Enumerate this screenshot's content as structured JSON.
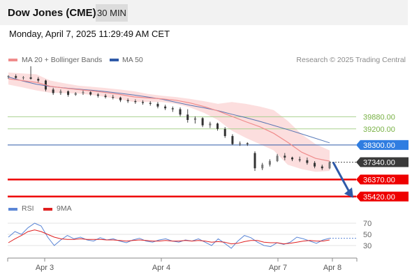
{
  "header": {
    "title": "Dow Jones (CME)",
    "timeframe": "30 MIN"
  },
  "timestamp": "Monday, April 7, 2025 11:29:49 AM CET",
  "legend": {
    "bb_label": "MA 20 + Bollinger Bands",
    "ma50_label": "MA 50",
    "credit": "Research © 2025 Trading Central"
  },
  "rsi_legend": {
    "rsi_label": "RSI",
    "ma_label": "9MA"
  },
  "colors": {
    "bb": "#f08c8c",
    "bb_fill": "#fbd8d8",
    "ma50": "#2f5aa8",
    "green": "#a9d18e",
    "red": "#ee0000",
    "candle": "#444444",
    "rsi": "#5b86d6",
    "rsi_ma": "#e02020",
    "arrow": "#2f5aa8"
  },
  "chart_data": [
    {
      "type": "line",
      "title": "",
      "x_ticks": [
        "Apr 3",
        "Apr 4",
        "Apr 7",
        "Apr 8"
      ],
      "ylim": [
        35100,
        42700
      ],
      "levels": [
        {
          "label": "39880.00",
          "value": 39880,
          "kind": "resistance"
        },
        {
          "label": "39200.00",
          "value": 39200,
          "kind": "resistance"
        },
        {
          "label": "38300.00",
          "value": 38300,
          "kind": "pivot"
        },
        {
          "label": "37340.00",
          "value": 37340,
          "kind": "last"
        },
        {
          "label": "36370.00",
          "value": 36370,
          "kind": "support"
        },
        {
          "label": "35420.00",
          "value": 35420,
          "kind": "support"
        }
      ],
      "series": [
        {
          "name": "MA 50",
          "x": [
            0,
            20,
            40,
            60,
            80,
            100,
            120,
            140,
            160,
            180,
            200,
            220,
            240,
            260,
            280,
            300,
            320,
            340,
            360,
            380,
            400,
            420,
            440,
            460
          ],
          "values": [
            42100,
            41880,
            41700,
            41570,
            41490,
            41420,
            41360,
            41280,
            41190,
            41090,
            40980,
            40860,
            40690,
            40520,
            40380,
            40220,
            40020,
            39830,
            39620,
            39390,
            39160,
            38920,
            38670,
            38420
          ]
        },
        {
          "name": "MA 20 + Bollinger Bands",
          "x": [
            0,
            20,
            40,
            60,
            80,
            100,
            120,
            140,
            160,
            180,
            200,
            220,
            240,
            260,
            280,
            300,
            320,
            340,
            360,
            380,
            400,
            420,
            440,
            460
          ],
          "values": [
            42000,
            41900,
            41800,
            41580,
            41480,
            41400,
            41320,
            41230,
            41120,
            40990,
            40930,
            40880,
            40800,
            40650,
            40450,
            40200,
            39900,
            39600,
            39320,
            38950,
            38450,
            37900,
            37550,
            37400
          ]
        }
      ],
      "bb_upper": [
        42350,
        42300,
        42250,
        41900,
        41750,
        41620,
        41550,
        41480,
        41400,
        41300,
        41150,
        41050,
        40980,
        40880,
        40750,
        40600,
        40700,
        40600,
        40450,
        40250,
        39650,
        38900,
        38350,
        38000
      ],
      "bb_lower": [
        41680,
        41520,
        41350,
        41220,
        41200,
        41180,
        41100,
        40980,
        40850,
        40700,
        40700,
        40700,
        40600,
        40400,
        40100,
        39700,
        39100,
        38700,
        38350,
        38000,
        37200,
        36950,
        36800,
        36850
      ],
      "candles": [
        [
          42100,
          42200,
          42000,
          42150
        ],
        [
          42150,
          42250,
          42000,
          42050
        ],
        [
          42050,
          42150,
          41950,
          42080
        ],
        [
          42080,
          42700,
          41950,
          42000
        ],
        [
          42000,
          42100,
          41800,
          41900
        ],
        [
          41900,
          41950,
          41300,
          41400
        ],
        [
          41400,
          41500,
          41100,
          41200
        ],
        [
          41200,
          41400,
          41100,
          41300
        ],
        [
          41300,
          41350,
          41000,
          41100
        ],
        [
          41100,
          41250,
          41050,
          41200
        ],
        [
          41200,
          41350,
          41100,
          41250
        ],
        [
          41250,
          41300,
          41050,
          41120
        ],
        [
          41120,
          41200,
          40950,
          41050
        ],
        [
          41050,
          41150,
          40900,
          40980
        ],
        [
          40980,
          41100,
          40850,
          40950
        ],
        [
          40950,
          41000,
          40700,
          40800
        ],
        [
          40800,
          40900,
          40650,
          40750
        ],
        [
          40750,
          40850,
          40600,
          40700
        ],
        [
          40700,
          40800,
          40550,
          40650
        ],
        [
          40650,
          40750,
          40500,
          40600
        ],
        [
          40600,
          40700,
          40350,
          40450
        ],
        [
          40450,
          40550,
          40250,
          40350
        ],
        [
          40350,
          40450,
          40150,
          40300
        ],
        [
          40300,
          40400,
          39900,
          40000
        ],
        [
          40000,
          40300,
          39550,
          39700
        ],
        [
          39700,
          39900,
          39500,
          39800
        ],
        [
          39800,
          39850,
          39300,
          39400
        ],
        [
          39400,
          39600,
          39250,
          39500
        ],
        [
          39500,
          39550,
          39100,
          39200
        ],
        [
          39200,
          39300,
          38700,
          38800
        ],
        [
          38800,
          38900,
          38300,
          38350
        ],
        [
          38350,
          38500,
          38250,
          38400
        ],
        [
          38400,
          38450,
          38250,
          38350
        ],
        [
          37850,
          37950,
          36850,
          37000
        ],
        [
          37000,
          37300,
          36900,
          37200
        ],
        [
          37200,
          37500,
          37100,
          37400
        ],
        [
          37400,
          37800,
          37350,
          37700
        ],
        [
          37700,
          37850,
          37450,
          37600
        ],
        [
          37600,
          37650,
          37400,
          37500
        ],
        [
          37500,
          37650,
          37350,
          37450
        ],
        [
          37450,
          37600,
          37200,
          37300
        ],
        [
          37300,
          37400,
          37000,
          37100
        ],
        [
          37100,
          37200,
          36900,
          37000
        ],
        [
          37000,
          37400,
          36950,
          37340
        ]
      ]
    },
    {
      "type": "line",
      "title": "",
      "ylim": [
        0,
        100
      ],
      "levels": [
        70,
        50,
        30
      ],
      "series": [
        {
          "name": "RSI",
          "values": [
            45,
            55,
            50,
            62,
            70,
            65,
            45,
            30,
            40,
            48,
            42,
            45,
            40,
            38,
            44,
            40,
            42,
            38,
            35,
            40,
            43,
            38,
            36,
            40,
            42,
            38,
            36,
            40,
            38,
            42,
            36,
            30,
            42,
            34,
            25,
            38,
            48,
            44,
            36,
            30,
            28,
            35,
            32,
            36,
            45,
            42,
            38,
            34,
            40,
            43
          ]
        },
        {
          "name": "9MA",
          "values": [
            35,
            42,
            48,
            55,
            58,
            55,
            50,
            45,
            42,
            41,
            41,
            42,
            41,
            41,
            41,
            40,
            40,
            39,
            38,
            39,
            40,
            39,
            38,
            38,
            39,
            38,
            38,
            39,
            38,
            39,
            38,
            36,
            37,
            36,
            33,
            34,
            37,
            39,
            39,
            36,
            35,
            35,
            33,
            34,
            36,
            38,
            39,
            38,
            38,
            40
          ]
        }
      ]
    }
  ]
}
